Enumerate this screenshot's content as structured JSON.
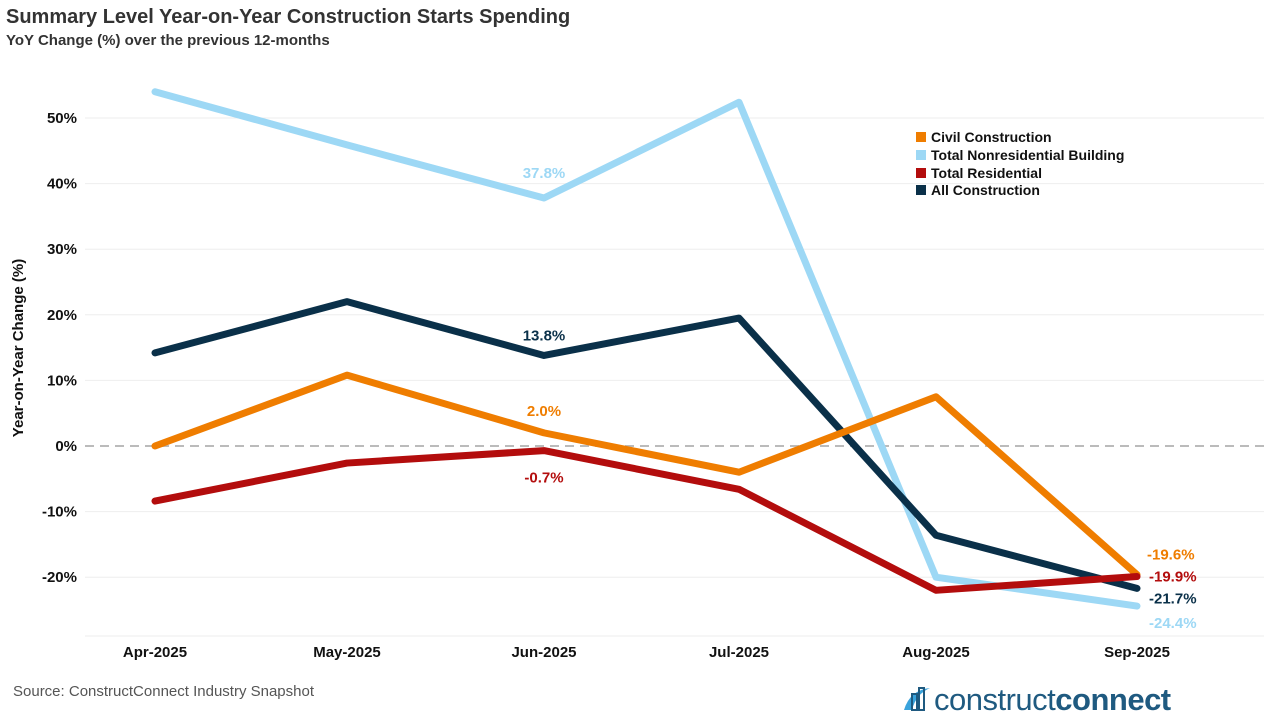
{
  "title": "Summary Level Year-on-Year Construction Starts Spending",
  "subtitle": "YoY Change (%) over the previous 12-months",
  "source": "Source: ConstructConnect Industry Snapshot",
  "logo": {
    "light": "construct",
    "bold": "connect"
  },
  "chart_data": {
    "type": "line",
    "title": "Summary Level Year-on-Year Construction Starts Spending",
    "subtitle": "YoY Change (%) over the previous 12-months",
    "xlabel": "",
    "ylabel": "Year-on-Year Change (%)",
    "categories": [
      "Apr-2025",
      "May-2025",
      "Jun-2025",
      "Jul-2025",
      "Aug-2025",
      "Sep-2025"
    ],
    "ylim": [
      -29,
      58
    ],
    "yticks": [
      -20,
      -10,
      0,
      10,
      20,
      30,
      40,
      50
    ],
    "ytick_labels": [
      "-20%",
      "-10%",
      "0%",
      "10%",
      "20%",
      "30%",
      "40%",
      "50%"
    ],
    "grid": true,
    "legend_position": "top-right",
    "series": [
      {
        "name": "Civil Construction",
        "color": "#ef7d00",
        "values": [
          0.0,
          10.8,
          2.0,
          -4.0,
          7.5,
          -19.6
        ],
        "labels": {
          "2": "2.0%",
          "5": "-19.6%"
        }
      },
      {
        "name": "Total Nonresidential Building",
        "color": "#9dd8f5",
        "values": [
          54.0,
          45.9,
          37.8,
          52.4,
          -20.0,
          -24.4
        ],
        "labels": {
          "2": "37.8%",
          "5": "-24.4%"
        }
      },
      {
        "name": "Total Residential",
        "color": "#b30d0d",
        "values": [
          -8.4,
          -2.6,
          -0.7,
          -6.6,
          -22.0,
          -19.9
        ],
        "labels": {
          "2": "-0.7%",
          "5": "-19.9%"
        }
      },
      {
        "name": "All Construction",
        "color": "#0a3049",
        "values": [
          14.2,
          22.0,
          13.8,
          19.5,
          -13.6,
          -21.7
        ],
        "labels": {
          "2": "13.8%",
          "5": "-21.7%"
        }
      }
    ]
  }
}
